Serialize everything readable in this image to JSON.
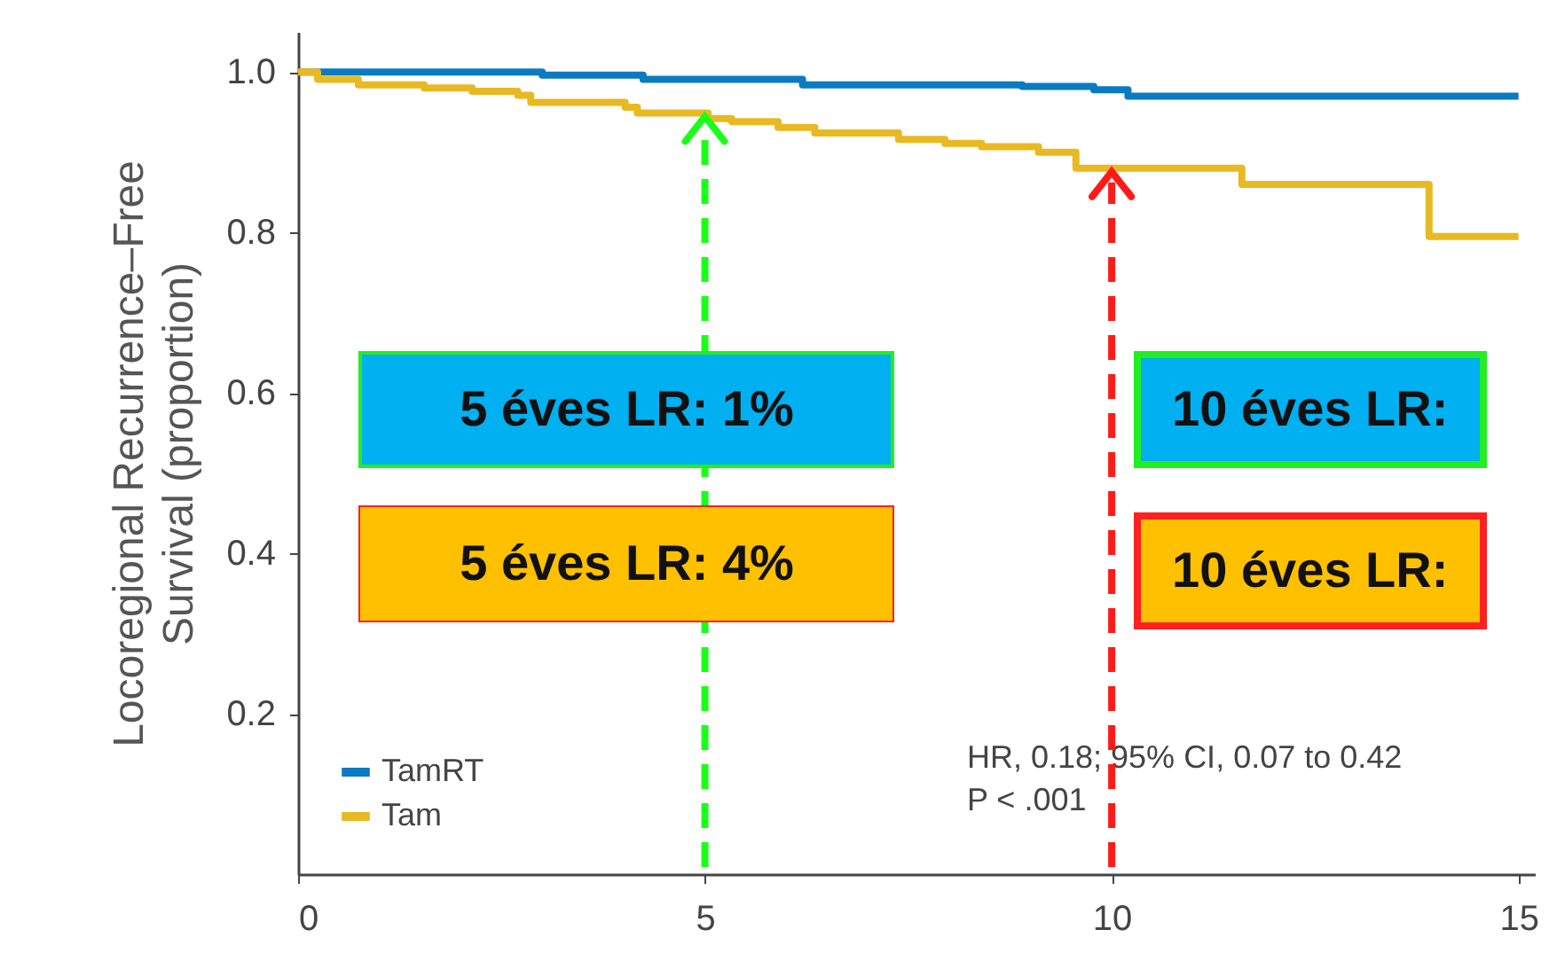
{
  "chart_data": {
    "type": "step",
    "ylabel": "Locoregional Recurrence–Free\nSurvival (proportion)",
    "xlim": [
      0,
      15.2
    ],
    "xticks": [
      0,
      5,
      10,
      15
    ],
    "ylim": [
      0,
      1.05
    ],
    "yticks": [
      0.2,
      0.4,
      0.6,
      0.8,
      {
        "value": 1,
        "label": "1.0"
      }
    ],
    "grid": false,
    "legend": "bottom left",
    "line_style": "solid",
    "marker": "none",
    "series": [
      {
        "name": "TamRT",
        "color": "#0a7bc2",
        "x": [
          0,
          3.0,
          4.24,
          6.2,
          8.9,
          9.78,
          10.2,
          15
        ],
        "values": [
          1.0,
          0.996,
          0.991,
          0.984,
          0.982,
          0.978,
          0.97,
          0.97
        ]
      },
      {
        "name": "Tam",
        "color": "#e8b923",
        "x": [
          0,
          0.24,
          0.74,
          1.55,
          2.14,
          2.7,
          2.86,
          4.02,
          4.17,
          5.04,
          5.33,
          5.9,
          6.35,
          7.38,
          7.95,
          8.4,
          9.1,
          9.56,
          11.6,
          13.9,
          15
        ],
        "values": [
          1.0,
          0.991,
          0.984,
          0.98,
          0.976,
          0.971,
          0.962,
          0.956,
          0.949,
          0.942,
          0.938,
          0.931,
          0.924,
          0.916,
          0.911,
          0.907,
          0.9,
          0.88,
          0.86,
          0.795,
          0.795
        ]
      }
    ],
    "annotations": [
      "5 éves LR: 1%",
      "5 éves LR: 4%",
      "10 éves LR:",
      "10 éves LR:",
      "HR, 0.18; 95% CI, 0.07 to 0.42",
      "P < .001"
    ],
    "ref_lines": [
      {
        "axis": "x",
        "value": 5,
        "color": "#1aff1a",
        "line_style": "dashed"
      },
      {
        "axis": "x",
        "value": 10,
        "color": "#ff1a1a",
        "line_style": "dashed"
      }
    ]
  }
}
